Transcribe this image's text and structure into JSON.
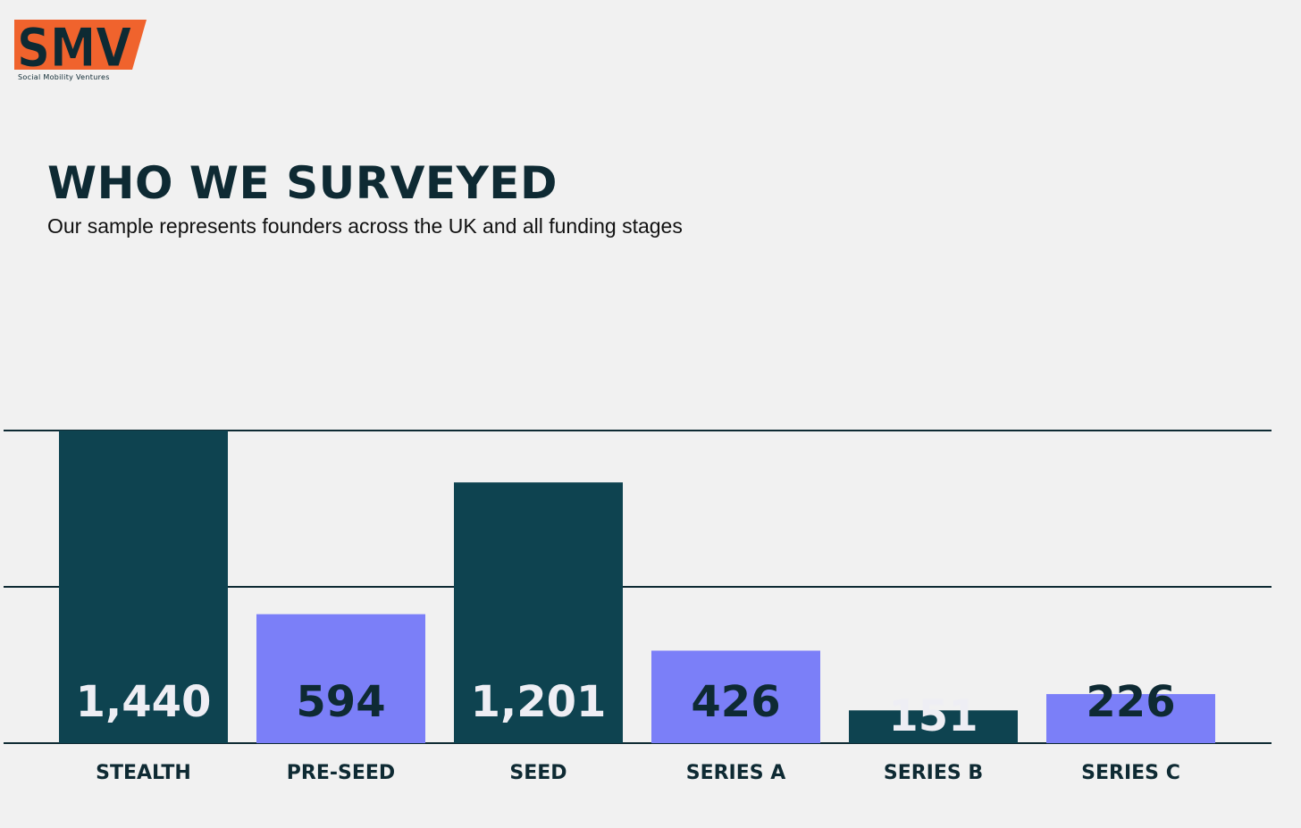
{
  "logo": {
    "wordmark": "SMV",
    "tagline": "Social Mobility Ventures",
    "accent_color": "#f0632d",
    "dark_color": "#0e2a33"
  },
  "header": {
    "title": "WHO WE SURVEYED",
    "subtitle": "Our sample represents founders across the UK and all funding stages"
  },
  "colors": {
    "dark_bar": "#0e4350",
    "light_bar": "#7b7ff8",
    "gridline": "#0e2a33",
    "value_on_dark": "#eeeef4",
    "value_on_light": "#0e2a33"
  },
  "chart_data": {
    "type": "bar",
    "title": "",
    "xlabel": "",
    "ylabel": "",
    "categories": [
      "STEALTH",
      "PRE-SEED",
      "SEED",
      "SERIES A",
      "SERIES B",
      "SERIES C"
    ],
    "values": [
      1440,
      594,
      1201,
      426,
      151,
      226
    ],
    "value_labels": [
      "1,440",
      "594",
      "1,201",
      "426",
      "151",
      "226"
    ],
    "bar_styles": [
      "dark",
      "light",
      "dark",
      "light",
      "dark",
      "light"
    ],
    "ylim": [
      0,
      1440
    ],
    "gridlines": [
      0,
      720,
      1440
    ],
    "grid": true,
    "legend": "none"
  }
}
